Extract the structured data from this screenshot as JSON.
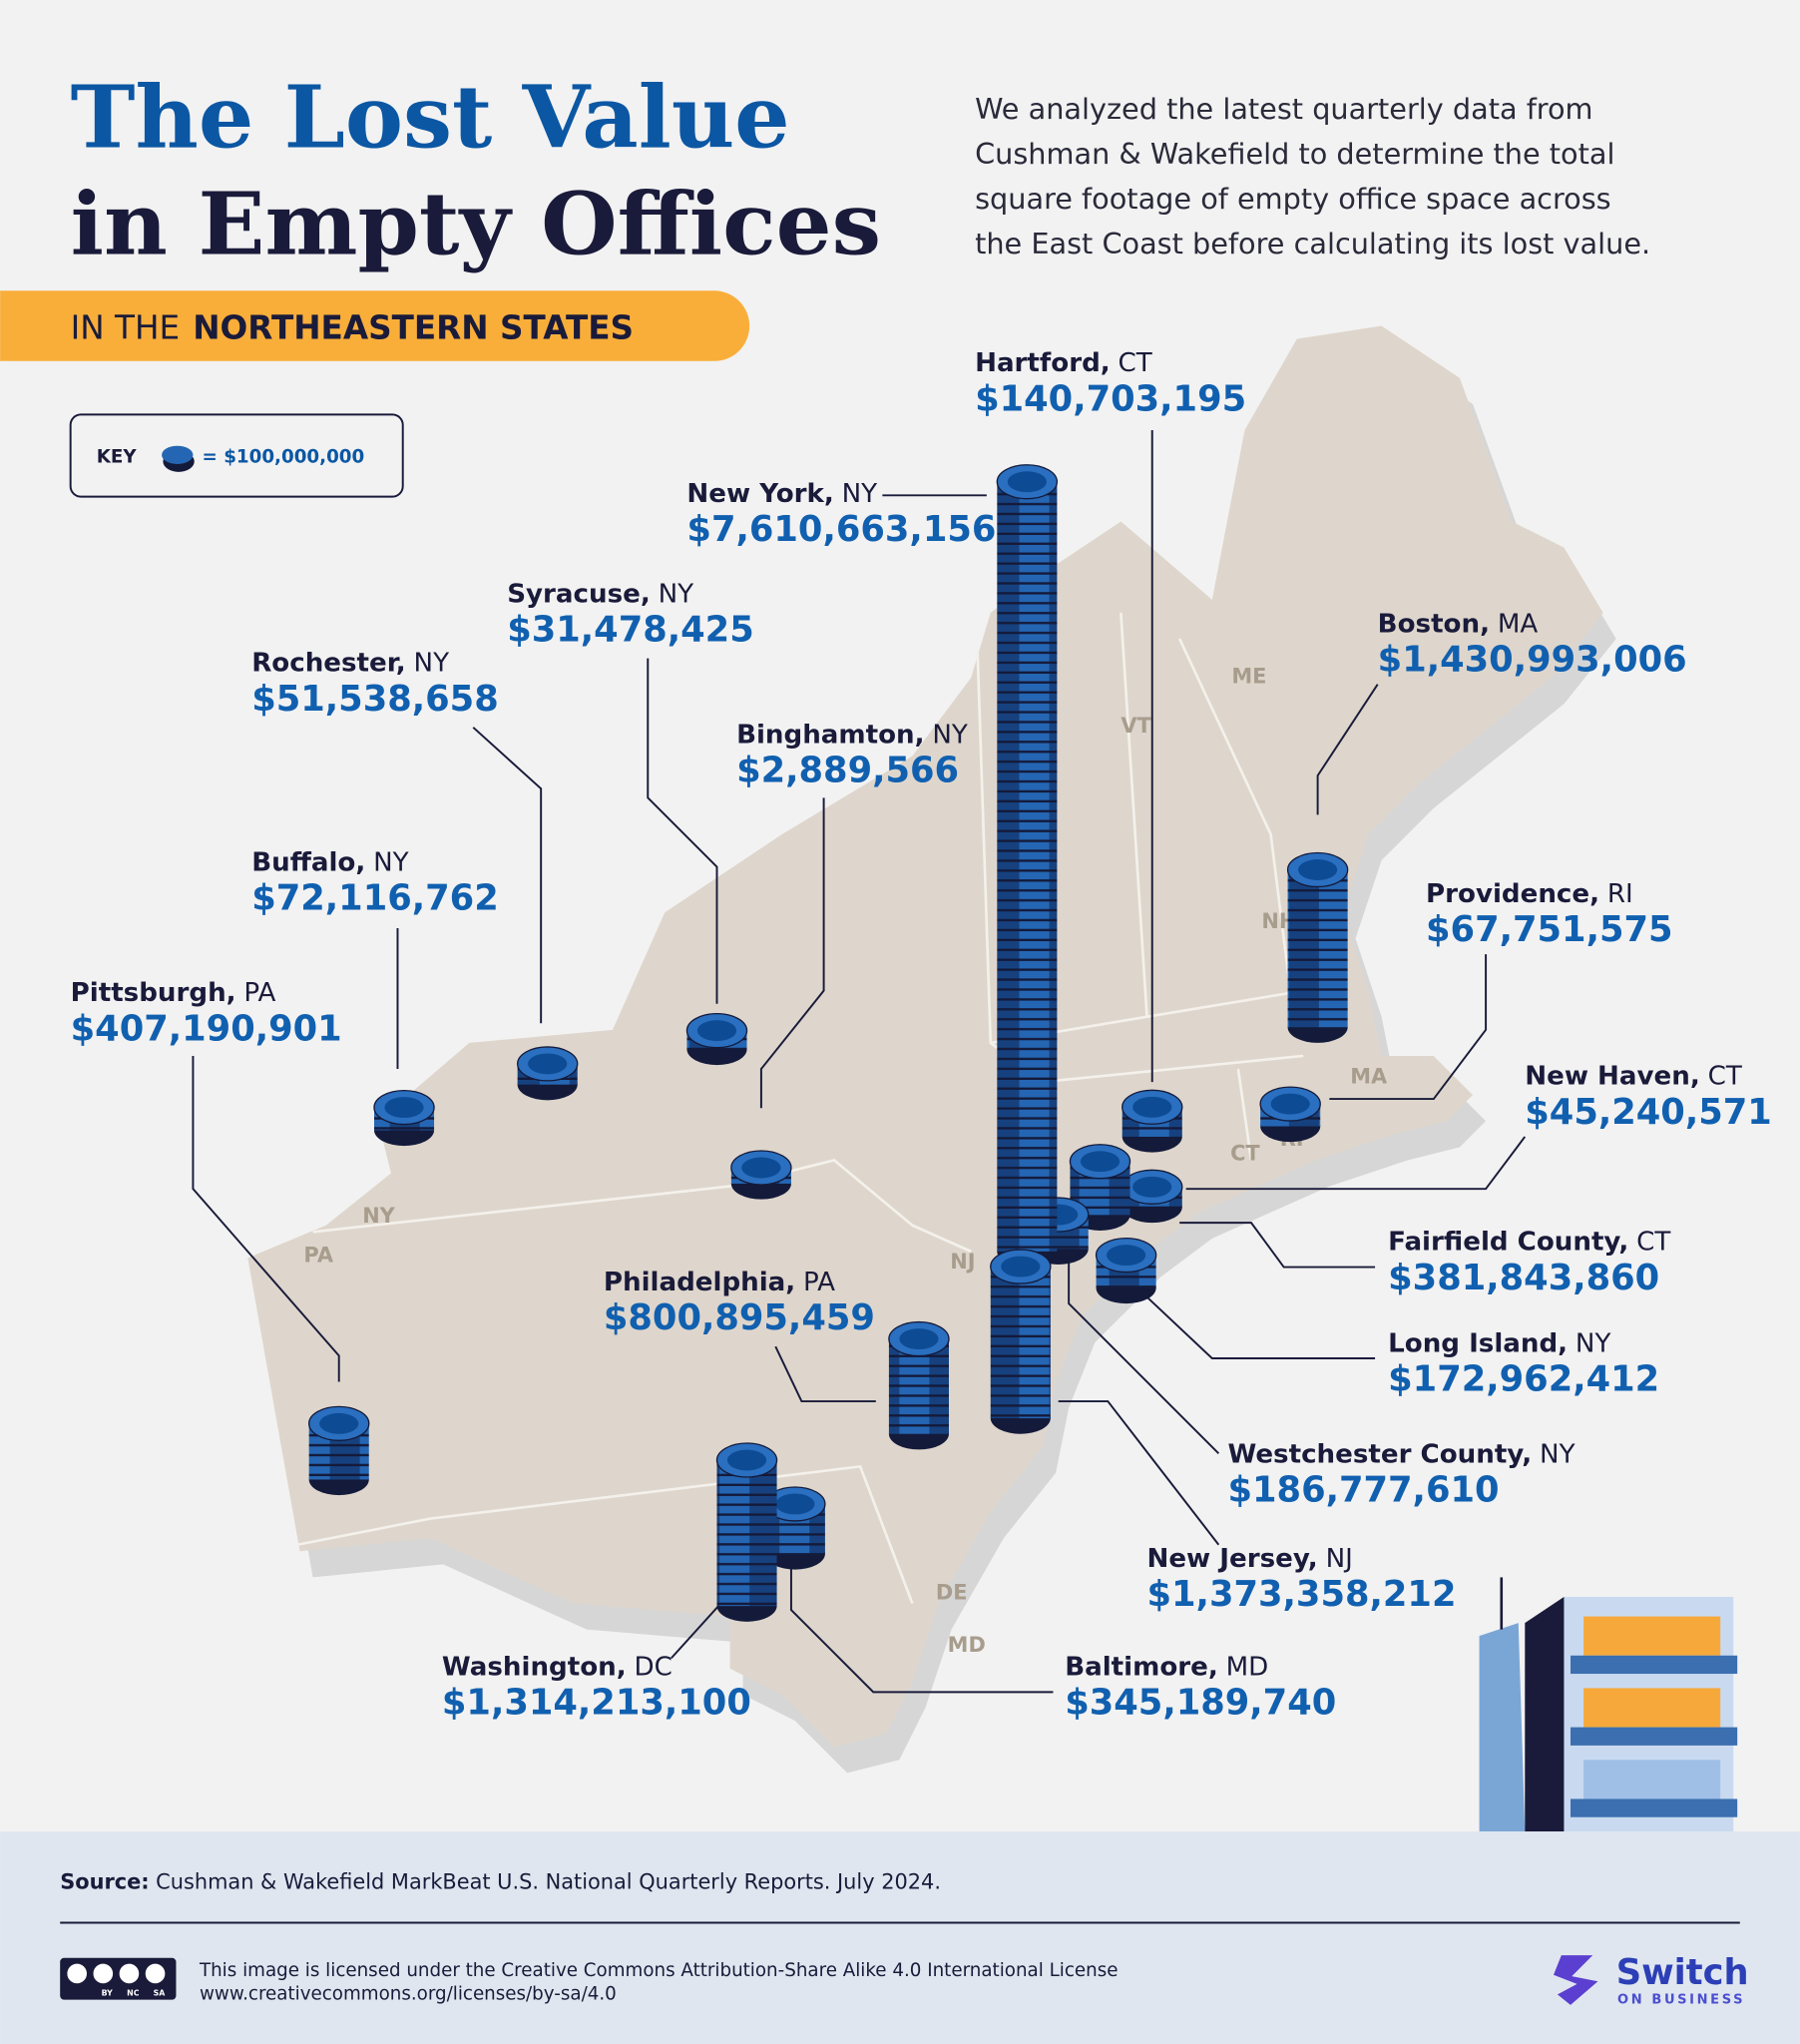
{
  "header": {
    "title_line1": "The Lost Value",
    "title_line2": "in Empty Offices",
    "intro": [
      "We analyzed the latest quarterly data from",
      "Cushman & Wakefield to determine the total",
      "square footage of empty office space across",
      "the East Coast before calculating its lost value."
    ],
    "banner": {
      "prefix": "IN THE",
      "emphasis": "NORTHEASTERN STATES"
    }
  },
  "key": {
    "label": "KEY",
    "coin": {
      "value": 100000000,
      "label": "= $100,000,000"
    }
  },
  "state_labels": [
    "ME",
    "VT",
    "NH",
    "MA",
    "CT",
    "RI",
    "NY",
    "PA",
    "NJ",
    "DE",
    "MD"
  ],
  "cities": [
    {
      "name": "Hartford,",
      "state": "CT",
      "value": 140703195,
      "value_label": "$140,703,195"
    },
    {
      "name": "New York,",
      "state": "NY",
      "value": 7610663156,
      "value_label": "$7,610,663,156"
    },
    {
      "name": "Syracuse,",
      "state": "NY",
      "value": 31478425,
      "value_label": "$31,478,425"
    },
    {
      "name": "Rochester,",
      "state": "NY",
      "value": 51538658,
      "value_label": "$51,538,658"
    },
    {
      "name": "Binghamton,",
      "state": "NY",
      "value": 2889566,
      "value_label": "$2,889,566"
    },
    {
      "name": "Buffalo,",
      "state": "NY",
      "value": 72116762,
      "value_label": "$72,116,762"
    },
    {
      "name": "Pittsburgh,",
      "state": "PA",
      "value": 407190901,
      "value_label": "$407,190,901"
    },
    {
      "name": "Boston,",
      "state": "MA",
      "value": 1430993006,
      "value_label": "$1,430,993,006"
    },
    {
      "name": "Providence,",
      "state": "RI",
      "value": 67751575,
      "value_label": "$67,751,575"
    },
    {
      "name": "New Haven,",
      "state": "CT",
      "value": 45240571,
      "value_label": "$45,240,571"
    },
    {
      "name": "Fairfield County,",
      "state": "CT",
      "value": 381843860,
      "value_label": "$381,843,860"
    },
    {
      "name": "Long Island,",
      "state": "NY",
      "value": 172962412,
      "value_label": "$172,962,412"
    },
    {
      "name": "Westchester County,",
      "state": "NY",
      "value": 186777610,
      "value_label": "$186,777,610"
    },
    {
      "name": "Philadelphia,",
      "state": "PA",
      "value": 800895459,
      "value_label": "$800,895,459"
    },
    {
      "name": "New Jersey,",
      "state": "NJ",
      "value": 1373358212,
      "value_label": "$1,373,358,212"
    },
    {
      "name": "Washington,",
      "state": "DC",
      "value": 1314213100,
      "value_label": "$1,314,213,100"
    },
    {
      "name": "Baltimore,",
      "state": "MD",
      "value": 345189740,
      "value_label": "$345,189,740"
    }
  ],
  "footer": {
    "source_label": "Source:",
    "source_text": "Cushman & Wakefield MarkBeat U.S. National Quarterly Reports. July 2024.",
    "license": [
      "This image is licensed under the Creative Commons Attribution-Share Alike 4.0 International License",
      "www.creativecommons.org/licenses/by-sa/4.0"
    ],
    "cc_badge": [
      "BY",
      "NC",
      "SA"
    ],
    "brand": "Switch",
    "brand_tagline": "ON BUSINESS"
  }
}
